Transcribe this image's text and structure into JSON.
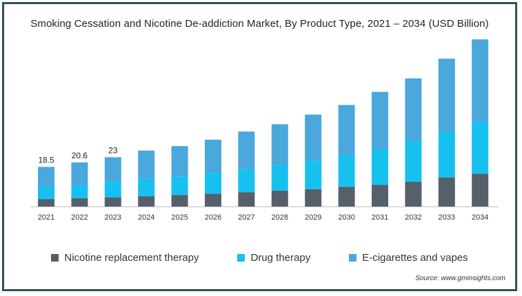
{
  "chart_data": {
    "type": "bar",
    "stacked": true,
    "title": "Smoking Cessation and Nicotine De-addiction Market, By Product Type, 2021 – 2034 (USD Billion)",
    "xlabel": "",
    "ylabel": "",
    "categories": [
      "2021",
      "2022",
      "2023",
      "2024",
      "2025",
      "2026",
      "2027",
      "2028",
      "2029",
      "2030",
      "2031",
      "2032",
      "2033",
      "2034"
    ],
    "series": [
      {
        "name": "Nicotine replacement therapy",
        "color": "#56606b",
        "values": [
          3.5,
          3.9,
          4.3,
          4.8,
          5.4,
          6.0,
          6.7,
          7.4,
          8.1,
          9.2,
          10.2,
          11.6,
          13.6,
          15.3
        ]
      },
      {
        "name": "Drug therapy",
        "color": "#16c1f0",
        "values": [
          5.8,
          6.2,
          7.2,
          8.1,
          8.5,
          9.7,
          10.7,
          12.0,
          13.3,
          14.7,
          16.5,
          19.2,
          21.1,
          24.5
        ]
      },
      {
        "name": "E-cigarettes and vapes",
        "color": "#4aa8dc",
        "values": [
          9.2,
          10.5,
          11.5,
          13.2,
          14.3,
          15.5,
          17.6,
          19.0,
          21.5,
          23.5,
          26.8,
          29.0,
          34.3,
          38.2
        ]
      }
    ],
    "data_labels": [
      "18.5",
      "20.6",
      "23"
    ],
    "ylim": [
      0,
      80
    ],
    "grid": false,
    "legend": "bottom"
  },
  "source": "Source: www.gminsights.com"
}
